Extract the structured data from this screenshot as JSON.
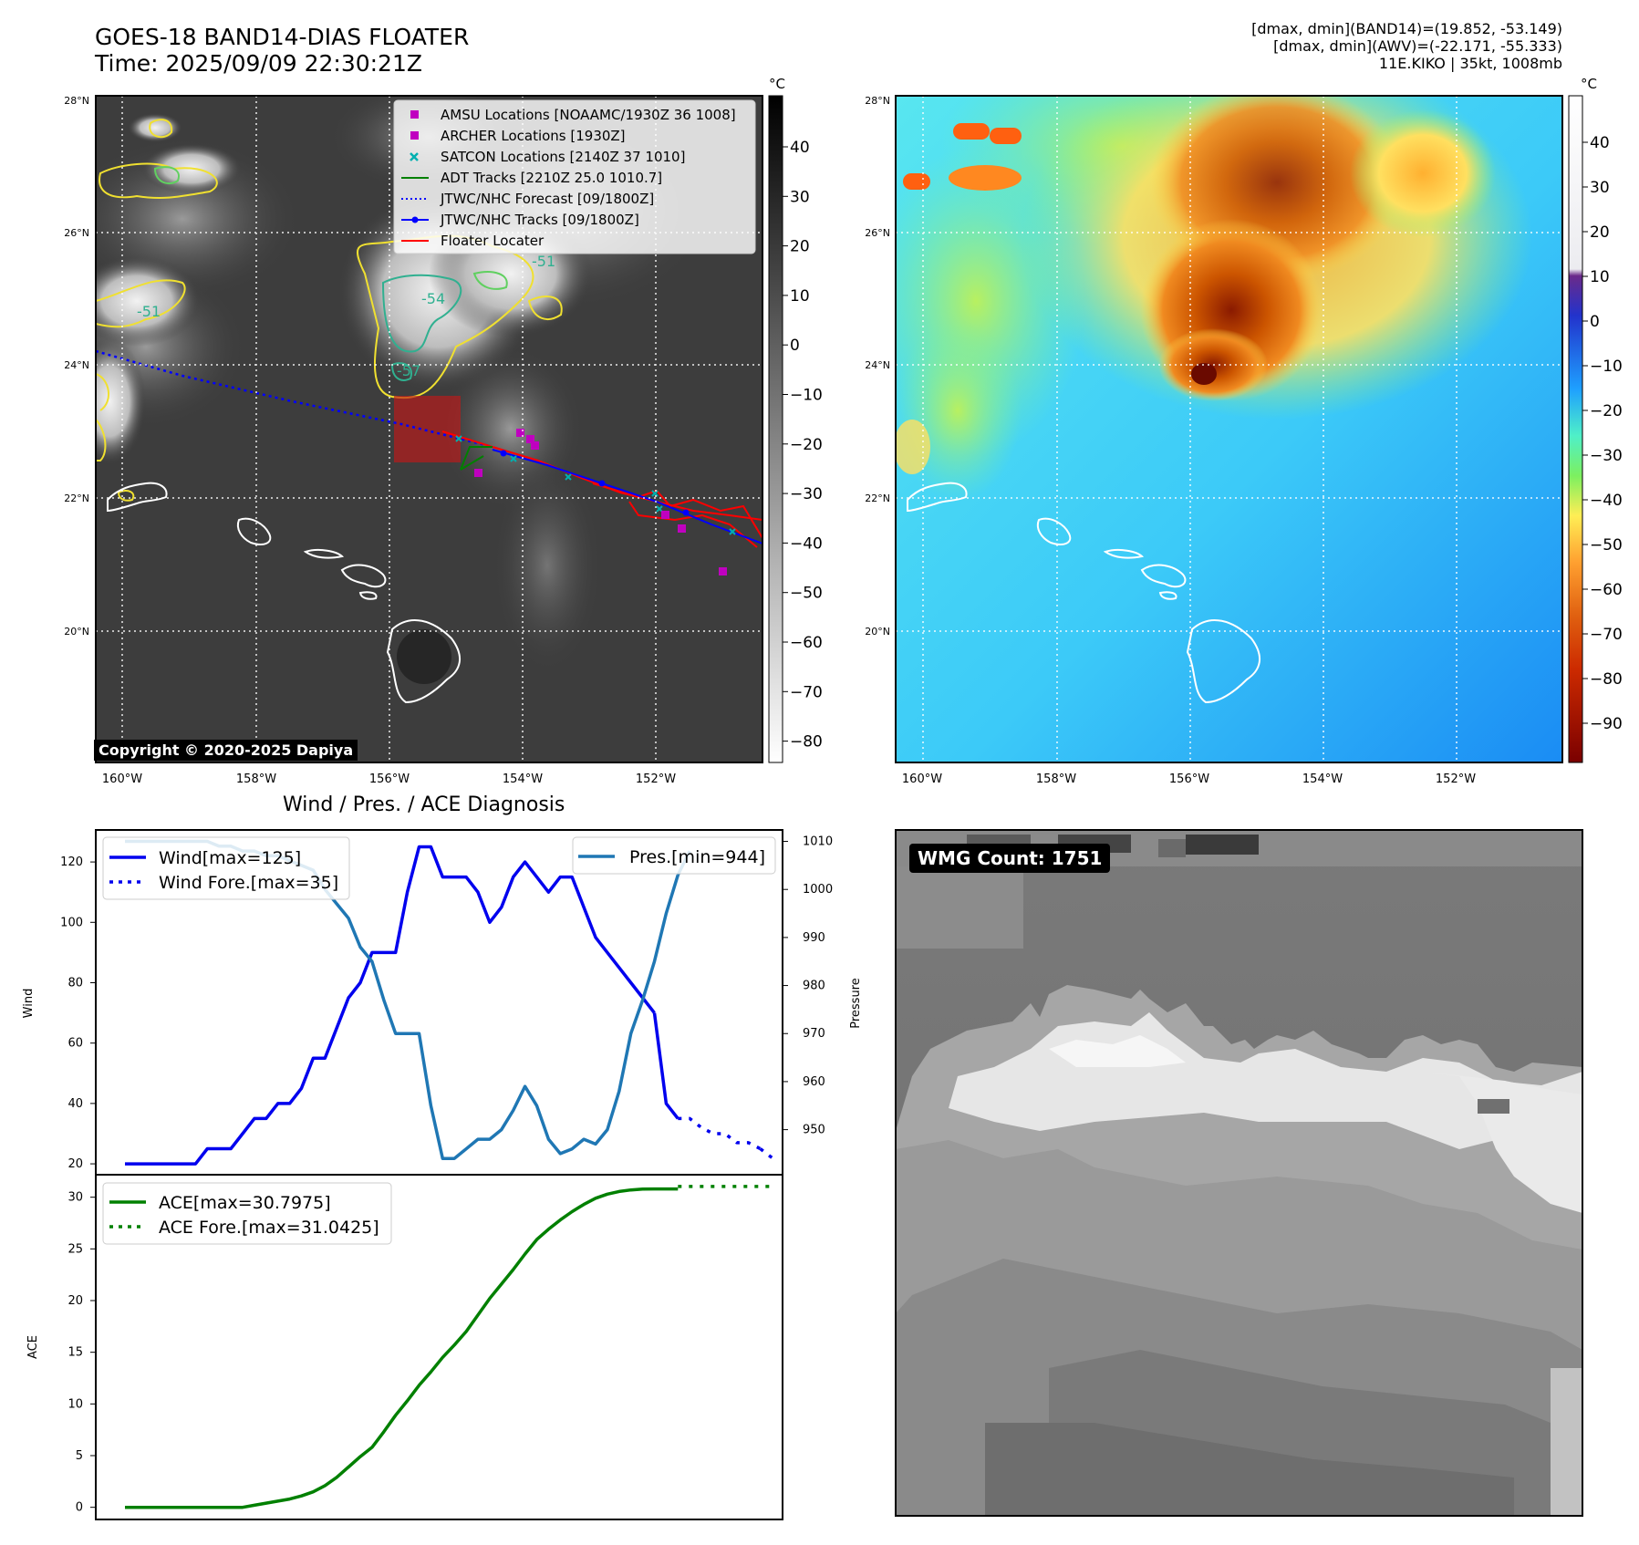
{
  "header": {
    "title_line1": "GOES-18 BAND14-DIAS FLOATER",
    "title_line2": "Time: 2025/09/09 22:30:21Z",
    "right_line1": "[dmax, dmin](BAND14)=(19.852, -53.149)",
    "right_line2": "[dmax, dmin](AWV)=(-22.171, -55.333)",
    "right_line3": "11E.KIKO | 35kt, 1008mb"
  },
  "map": {
    "lat_labels": [
      "28°N",
      "26°N",
      "24°N",
      "22°N",
      "20°N"
    ],
    "lon_labels": [
      "160°W",
      "158°W",
      "156°W",
      "154°W",
      "152°W"
    ],
    "copyright": "Copyright © 2020-2025 Dapiya",
    "legend": [
      {
        "label": "AMSU Locations [NOAAMC/1930Z 36 1008]",
        "color": "#c000c0",
        "marker": "square"
      },
      {
        "label": "ARCHER Locations [1930Z]",
        "color": "#c000c0",
        "marker": "square"
      },
      {
        "label": "SATCON Locations [2140Z 37 1010]",
        "color": "#00b0b0",
        "marker": "x"
      },
      {
        "label": "ADT Tracks [2210Z 25.0 1010.7]",
        "color": "#008000",
        "marker": "line"
      },
      {
        "label": "JTWC/NHC Forecast [09/1800Z]",
        "color": "#0000ff",
        "marker": "dotted"
      },
      {
        "label": "JTWC/NHC Tracks [09/1800Z]",
        "color": "#0000ff",
        "marker": "line-dot"
      },
      {
        "label": "Floater Locater",
        "color": "#ff0000",
        "marker": "line"
      }
    ],
    "contour_labels": [
      "-51",
      "-54",
      "-51",
      "-57"
    ],
    "cbar_gray": {
      "unit": "°C",
      "ticks": [
        "40",
        "30",
        "20",
        "10",
        "0",
        "−10",
        "−20",
        "−30",
        "−40",
        "−50",
        "−60",
        "−70",
        "−80"
      ]
    },
    "cbar_color": {
      "unit": "°C",
      "ticks": [
        "40",
        "30",
        "20",
        "10",
        "0",
        "−10",
        "−20",
        "−30",
        "−40",
        "−50",
        "−60",
        "−70",
        "−80",
        "−90"
      ]
    }
  },
  "diagnosis": {
    "title": "Wind / Pres. / ACE Diagnosis",
    "wmg_count": "WMG Count: 1751"
  },
  "chart_data": [
    {
      "type": "line",
      "title": "Wind / Pres. / ACE Diagnosis",
      "ylabel": "Wind",
      "y2label": "Pressure",
      "ylim": [
        17,
        130
      ],
      "y2lim": [
        941,
        1012
      ],
      "yticks": [
        20,
        40,
        60,
        80,
        100,
        120
      ],
      "y2ticks": [
        950,
        960,
        970,
        980,
        990,
        1000,
        1010
      ],
      "series": [
        {
          "name": "Wind[max=125]",
          "color": "#0000ee",
          "style": "solid",
          "axis": "left",
          "x": [
            0,
            1,
            2,
            3,
            4,
            5,
            6,
            7,
            8,
            9,
            10,
            11,
            12,
            13,
            14,
            15,
            16,
            17,
            18,
            19,
            20,
            21,
            22,
            23,
            24,
            25,
            26,
            27,
            28,
            29,
            30,
            31,
            32,
            33,
            34,
            35,
            36,
            37,
            38,
            39,
            40,
            41,
            42,
            43,
            44,
            45
          ],
          "values": [
            20,
            20,
            20,
            20,
            20,
            20,
            20,
            25,
            25,
            25,
            30,
            35,
            35,
            40,
            40,
            45,
            55,
            55,
            65,
            75,
            80,
            90,
            90,
            90,
            110,
            125,
            125,
            115,
            115,
            115,
            110,
            100,
            105,
            115,
            120,
            115,
            110,
            115,
            115,
            105,
            95,
            90,
            85,
            80,
            75,
            70
          ]
        },
        {
          "name": "Wind[max=125] tail",
          "color": "#0000ee",
          "style": "solid",
          "axis": "left",
          "legend": false,
          "x": [
            45,
            46,
            47
          ],
          "values": [
            70,
            40,
            35
          ]
        },
        {
          "name": "Wind Fore.[max=35]",
          "color": "#0000ee",
          "style": "dotted",
          "axis": "left",
          "x": [
            47,
            48,
            49,
            50,
            51,
            52,
            53,
            54
          ],
          "values": [
            35,
            35,
            32,
            30,
            30,
            27,
            27,
            25
          ]
        },
        {
          "name": "Wind Fore.[max=35] end",
          "color": "#0000ee",
          "style": "dotted",
          "axis": "left",
          "legend": false,
          "x": [
            54,
            55
          ],
          "values": [
            25,
            22
          ]
        },
        {
          "name": "Pres.[min=944]",
          "color": "#1f77b4",
          "style": "solid",
          "axis": "right",
          "x": [
            0,
            1,
            2,
            3,
            4,
            5,
            6,
            7,
            8,
            9,
            10,
            11,
            12,
            13,
            14,
            15,
            16,
            17,
            18,
            19,
            20,
            21,
            22,
            23,
            24,
            25,
            26,
            27,
            28,
            29,
            30,
            31,
            32,
            33,
            34,
            35,
            36,
            37,
            38,
            39,
            40,
            41,
            42,
            43,
            44,
            45,
            46,
            47
          ],
          "values": [
            1010,
            1010,
            1010,
            1010,
            1010,
            1010,
            1010,
            1010,
            1009,
            1009,
            1008,
            1008,
            1007,
            1007,
            1006,
            1005,
            1004,
            1000,
            997,
            994,
            988,
            985,
            977,
            970,
            970,
            970,
            955,
            944,
            944,
            946,
            948,
            948,
            950,
            954,
            959,
            955,
            948,
            945,
            946,
            948,
            947,
            950,
            958,
            970,
            977,
            985,
            995,
            1003
          ]
        },
        {
          "name": "Pres.[min=944] end",
          "color": "#1f77b4",
          "style": "solid",
          "axis": "right",
          "legend": false,
          "x": [
            47,
            48
          ],
          "values": [
            1003,
            1008
          ]
        }
      ]
    },
    {
      "type": "line",
      "ylabel": "ACE",
      "ylim": [
        -1,
        32
      ],
      "yticks": [
        0,
        5,
        10,
        15,
        20,
        25,
        30
      ],
      "series": [
        {
          "name": "ACE[max=30.7975]",
          "color": "#008000",
          "style": "solid",
          "x": [
            0,
            2,
            4,
            6,
            8,
            10,
            11,
            12,
            13,
            14,
            15,
            16,
            17,
            18,
            19,
            20,
            21,
            22,
            23,
            24,
            25,
            26,
            27,
            28,
            29,
            30,
            31,
            32,
            33,
            34,
            35,
            36,
            37,
            38,
            39,
            40,
            41,
            42,
            43,
            44,
            45,
            46,
            47
          ],
          "values": [
            0,
            0,
            0,
            0,
            0,
            0,
            0.2,
            0.4,
            0.6,
            0.8,
            1.1,
            1.5,
            2.1,
            2.9,
            3.9,
            4.9,
            5.8,
            7.3,
            8.9,
            10.3,
            11.8,
            13.1,
            14.5,
            15.7,
            17,
            18.6,
            20.2,
            21.6,
            23,
            24.5,
            25.9,
            26.9,
            27.8,
            28.6,
            29.3,
            29.9,
            30.3,
            30.55,
            30.7,
            30.78,
            30.8,
            30.8,
            30.8
          ]
        },
        {
          "name": "ACE Fore.[max=31.0425]",
          "color": "#008000",
          "style": "dotted",
          "x": [
            47,
            48,
            49,
            50,
            51,
            52,
            53,
            54,
            55
          ],
          "values": [
            31.0425,
            31.0425,
            31.0425,
            31.0425,
            31.0425,
            31.0425,
            31.0425,
            31.0425,
            31.0425
          ]
        }
      ]
    }
  ]
}
